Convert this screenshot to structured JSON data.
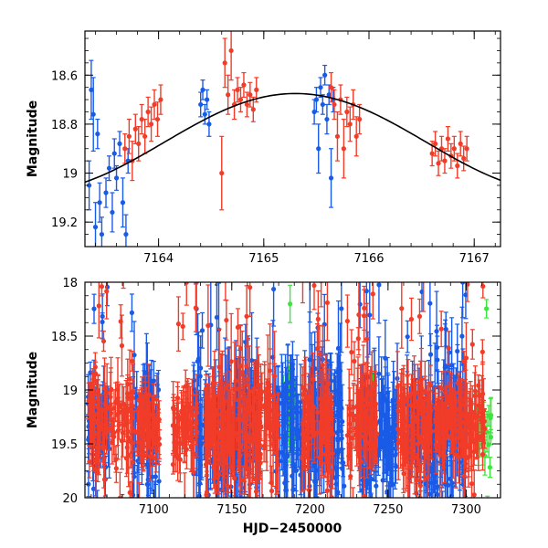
{
  "chart_data": [
    {
      "type": "scatter",
      "panel": "top",
      "xlabel": "",
      "ylabel": "Magnitude",
      "xlim": [
        7163.3,
        7167.25
      ],
      "ylim": [
        19.3,
        18.42
      ],
      "y_inverted": true,
      "xticks": [
        7164,
        7165,
        7166,
        7167
      ],
      "yticks": [
        18.6,
        18.8,
        19,
        19.2
      ],
      "xtick_labels": [
        "7164",
        "7165",
        "7166",
        "7167"
      ],
      "ytick_labels": [
        "18.6",
        "18.8",
        "19",
        "19.2"
      ],
      "series": [
        {
          "name": "blue",
          "color": "#1a5be6",
          "points": [
            {
              "x": 7163.34,
              "y": 19.05,
              "err": 0.1
            },
            {
              "x": 7163.36,
              "y": 18.66,
              "err": 0.12
            },
            {
              "x": 7163.38,
              "y": 18.76,
              "err": 0.15
            },
            {
              "x": 7163.4,
              "y": 19.22,
              "err": 0.1
            },
            {
              "x": 7163.42,
              "y": 18.84,
              "err": 0.06
            },
            {
              "x": 7163.44,
              "y": 19.12,
              "err": 0.08
            },
            {
              "x": 7163.46,
              "y": 19.25,
              "err": 0.07
            },
            {
              "x": 7163.5,
              "y": 19.08,
              "err": 0.06
            },
            {
              "x": 7163.53,
              "y": 18.98,
              "err": 0.05
            },
            {
              "x": 7163.56,
              "y": 19.16,
              "err": 0.08
            },
            {
              "x": 7163.58,
              "y": 18.92,
              "err": 0.06
            },
            {
              "x": 7163.6,
              "y": 19.02,
              "err": 0.05
            },
            {
              "x": 7163.63,
              "y": 18.88,
              "err": 0.05
            },
            {
              "x": 7163.66,
              "y": 19.12,
              "err": 0.1
            },
            {
              "x": 7163.69,
              "y": 19.25,
              "err": 0.08
            },
            {
              "x": 7163.71,
              "y": 18.95,
              "err": 0.05
            },
            {
              "x": 7164.4,
              "y": 18.72,
              "err": 0.05
            },
            {
              "x": 7164.42,
              "y": 18.66,
              "err": 0.04
            },
            {
              "x": 7164.44,
              "y": 18.76,
              "err": 0.04
            },
            {
              "x": 7164.46,
              "y": 18.7,
              "err": 0.04
            },
            {
              "x": 7164.48,
              "y": 18.8,
              "err": 0.05
            },
            {
              "x": 7165.48,
              "y": 18.75,
              "err": 0.05
            },
            {
              "x": 7165.5,
              "y": 18.7,
              "err": 0.05
            },
            {
              "x": 7165.52,
              "y": 18.9,
              "err": 0.1
            },
            {
              "x": 7165.54,
              "y": 18.65,
              "err": 0.04
            },
            {
              "x": 7165.56,
              "y": 18.72,
              "err": 0.04
            },
            {
              "x": 7165.58,
              "y": 18.6,
              "err": 0.04
            },
            {
              "x": 7165.6,
              "y": 18.78,
              "err": 0.06
            },
            {
              "x": 7165.62,
              "y": 18.68,
              "err": 0.04
            },
            {
              "x": 7165.64,
              "y": 19.02,
              "err": 0.12
            },
            {
              "x": 7165.66,
              "y": 18.7,
              "err": 0.05
            }
          ]
        },
        {
          "name": "red",
          "color": "#f03c28",
          "points": [
            {
              "x": 7163.68,
              "y": 18.9,
              "err": 0.06
            },
            {
              "x": 7163.72,
              "y": 18.85,
              "err": 0.07
            },
            {
              "x": 7163.75,
              "y": 18.95,
              "err": 0.08
            },
            {
              "x": 7163.78,
              "y": 18.82,
              "err": 0.06
            },
            {
              "x": 7163.81,
              "y": 18.88,
              "err": 0.07
            },
            {
              "x": 7163.84,
              "y": 18.78,
              "err": 0.06
            },
            {
              "x": 7163.87,
              "y": 18.85,
              "err": 0.07
            },
            {
              "x": 7163.9,
              "y": 18.75,
              "err": 0.06
            },
            {
              "x": 7163.93,
              "y": 18.8,
              "err": 0.07
            },
            {
              "x": 7163.96,
              "y": 18.72,
              "err": 0.06
            },
            {
              "x": 7163.99,
              "y": 18.78,
              "err": 0.07
            },
            {
              "x": 7164.02,
              "y": 18.7,
              "err": 0.06
            },
            {
              "x": 7164.6,
              "y": 19.0,
              "err": 0.15
            },
            {
              "x": 7164.63,
              "y": 18.55,
              "err": 0.1
            },
            {
              "x": 7164.66,
              "y": 18.68,
              "err": 0.08
            },
            {
              "x": 7164.69,
              "y": 18.5,
              "err": 0.12
            },
            {
              "x": 7164.72,
              "y": 18.72,
              "err": 0.06
            },
            {
              "x": 7164.75,
              "y": 18.66,
              "err": 0.05
            },
            {
              "x": 7164.78,
              "y": 18.7,
              "err": 0.05
            },
            {
              "x": 7164.81,
              "y": 18.64,
              "err": 0.05
            },
            {
              "x": 7164.84,
              "y": 18.72,
              "err": 0.05
            },
            {
              "x": 7164.87,
              "y": 18.68,
              "err": 0.05
            },
            {
              "x": 7164.9,
              "y": 18.74,
              "err": 0.05
            },
            {
              "x": 7164.93,
              "y": 18.66,
              "err": 0.05
            },
            {
              "x": 7165.64,
              "y": 18.65,
              "err": 0.06
            },
            {
              "x": 7165.67,
              "y": 18.72,
              "err": 0.06
            },
            {
              "x": 7165.7,
              "y": 18.85,
              "err": 0.1
            },
            {
              "x": 7165.73,
              "y": 18.7,
              "err": 0.06
            },
            {
              "x": 7165.76,
              "y": 18.9,
              "err": 0.12
            },
            {
              "x": 7165.79,
              "y": 18.75,
              "err": 0.06
            },
            {
              "x": 7165.82,
              "y": 18.8,
              "err": 0.07
            },
            {
              "x": 7165.85,
              "y": 18.72,
              "err": 0.06
            },
            {
              "x": 7165.88,
              "y": 18.85,
              "err": 0.08
            },
            {
              "x": 7165.91,
              "y": 18.78,
              "err": 0.06
            },
            {
              "x": 7166.6,
              "y": 18.92,
              "err": 0.05
            },
            {
              "x": 7166.63,
              "y": 18.88,
              "err": 0.05
            },
            {
              "x": 7166.66,
              "y": 18.96,
              "err": 0.05
            },
            {
              "x": 7166.69,
              "y": 18.9,
              "err": 0.05
            },
            {
              "x": 7166.72,
              "y": 18.95,
              "err": 0.05
            },
            {
              "x": 7166.75,
              "y": 18.86,
              "err": 0.05
            },
            {
              "x": 7166.78,
              "y": 18.93,
              "err": 0.05
            },
            {
              "x": 7166.81,
              "y": 18.9,
              "err": 0.05
            },
            {
              "x": 7166.84,
              "y": 18.97,
              "err": 0.05
            },
            {
              "x": 7166.87,
              "y": 18.88,
              "err": 0.05
            },
            {
              "x": 7166.9,
              "y": 18.94,
              "err": 0.05
            },
            {
              "x": 7166.93,
              "y": 18.9,
              "err": 0.05
            }
          ]
        }
      ],
      "model_curve": {
        "name": "fit",
        "color": "#000000",
        "peak_x": 7165.3,
        "peak_y": 18.675,
        "half_period": 2.5,
        "amplitude": 0.4,
        "x_from": 7163.3,
        "x_to": 7167.25
      }
    },
    {
      "type": "scatter",
      "panel": "bottom",
      "xlabel": "HJD−2450000",
      "ylabel": "Magnitude",
      "xlim": [
        7056,
        7322
      ],
      "ylim": [
        20,
        18
      ],
      "y_inverted": true,
      "xticks": [
        7100,
        7150,
        7200,
        7250,
        7300
      ],
      "yticks": [
        18,
        18.5,
        19,
        19.5,
        20
      ],
      "xtick_labels": [
        "7100",
        "7150",
        "7200",
        "7250",
        "7300"
      ],
      "ytick_labels": [
        "18",
        "18.5",
        "19",
        "19.5",
        "20"
      ],
      "segments": [
        {
          "series": "green",
          "color": "#3ce63c",
          "from": 7183,
          "to": 7191,
          "center": 19.2,
          "spread": 0.25,
          "err": 0.18
        },
        {
          "series": "green",
          "color": "#3ce63c",
          "from": 7236,
          "to": 7242,
          "center": 19.25,
          "spread": 0.2,
          "err": 0.15
        },
        {
          "series": "green",
          "color": "#3ce63c",
          "from": 7307,
          "to": 7316,
          "center": 19.35,
          "spread": 0.15,
          "err": 0.15
        },
        {
          "series": "blue",
          "color": "#1a5be6",
          "from": 7058,
          "to": 7072,
          "center": 19.35,
          "spread": 0.35,
          "err": 0.2
        },
        {
          "series": "blue",
          "color": "#1a5be6",
          "from": 7086,
          "to": 7104,
          "center": 19.35,
          "spread": 0.4,
          "err": 0.25
        },
        {
          "series": "blue",
          "color": "#1a5be6",
          "from": 7125,
          "to": 7168,
          "center": 19.35,
          "spread": 0.45,
          "err": 0.3
        },
        {
          "series": "blue",
          "color": "#1a5be6",
          "from": 7176,
          "to": 7222,
          "center": 19.35,
          "spread": 0.45,
          "err": 0.3
        },
        {
          "series": "blue",
          "color": "#1a5be6",
          "from": 7232,
          "to": 7256,
          "center": 19.4,
          "spread": 0.4,
          "err": 0.3
        },
        {
          "series": "blue",
          "color": "#1a5be6",
          "from": 7262,
          "to": 7300,
          "center": 19.4,
          "spread": 0.45,
          "err": 0.3
        },
        {
          "series": "red",
          "color": "#f03c28",
          "from": 7058,
          "to": 7088,
          "center": 19.3,
          "spread": 0.3,
          "err": 0.2
        },
        {
          "series": "red",
          "color": "#f03c28",
          "from": 7089,
          "to": 7104,
          "center": 19.3,
          "spread": 0.25,
          "err": 0.2
        },
        {
          "series": "red",
          "color": "#f03c28",
          "from": 7112,
          "to": 7128,
          "center": 19.3,
          "spread": 0.25,
          "err": 0.2
        },
        {
          "series": "red",
          "color": "#f03c28",
          "from": 7133,
          "to": 7180,
          "center": 19.3,
          "spread": 0.35,
          "err": 0.3
        },
        {
          "series": "red",
          "color": "#f03c28",
          "from": 7195,
          "to": 7215,
          "center": 19.3,
          "spread": 0.3,
          "err": 0.25
        },
        {
          "series": "red",
          "color": "#f03c28",
          "from": 7224,
          "to": 7243,
          "center": 19.3,
          "spread": 0.3,
          "err": 0.25
        },
        {
          "series": "red",
          "color": "#f03c28",
          "from": 7256,
          "to": 7278,
          "center": 19.3,
          "spread": 0.3,
          "err": 0.25
        },
        {
          "series": "red",
          "color": "#f03c28",
          "from": 7280,
          "to": 7312,
          "center": 19.3,
          "spread": 0.25,
          "err": 0.22
        }
      ]
    }
  ]
}
